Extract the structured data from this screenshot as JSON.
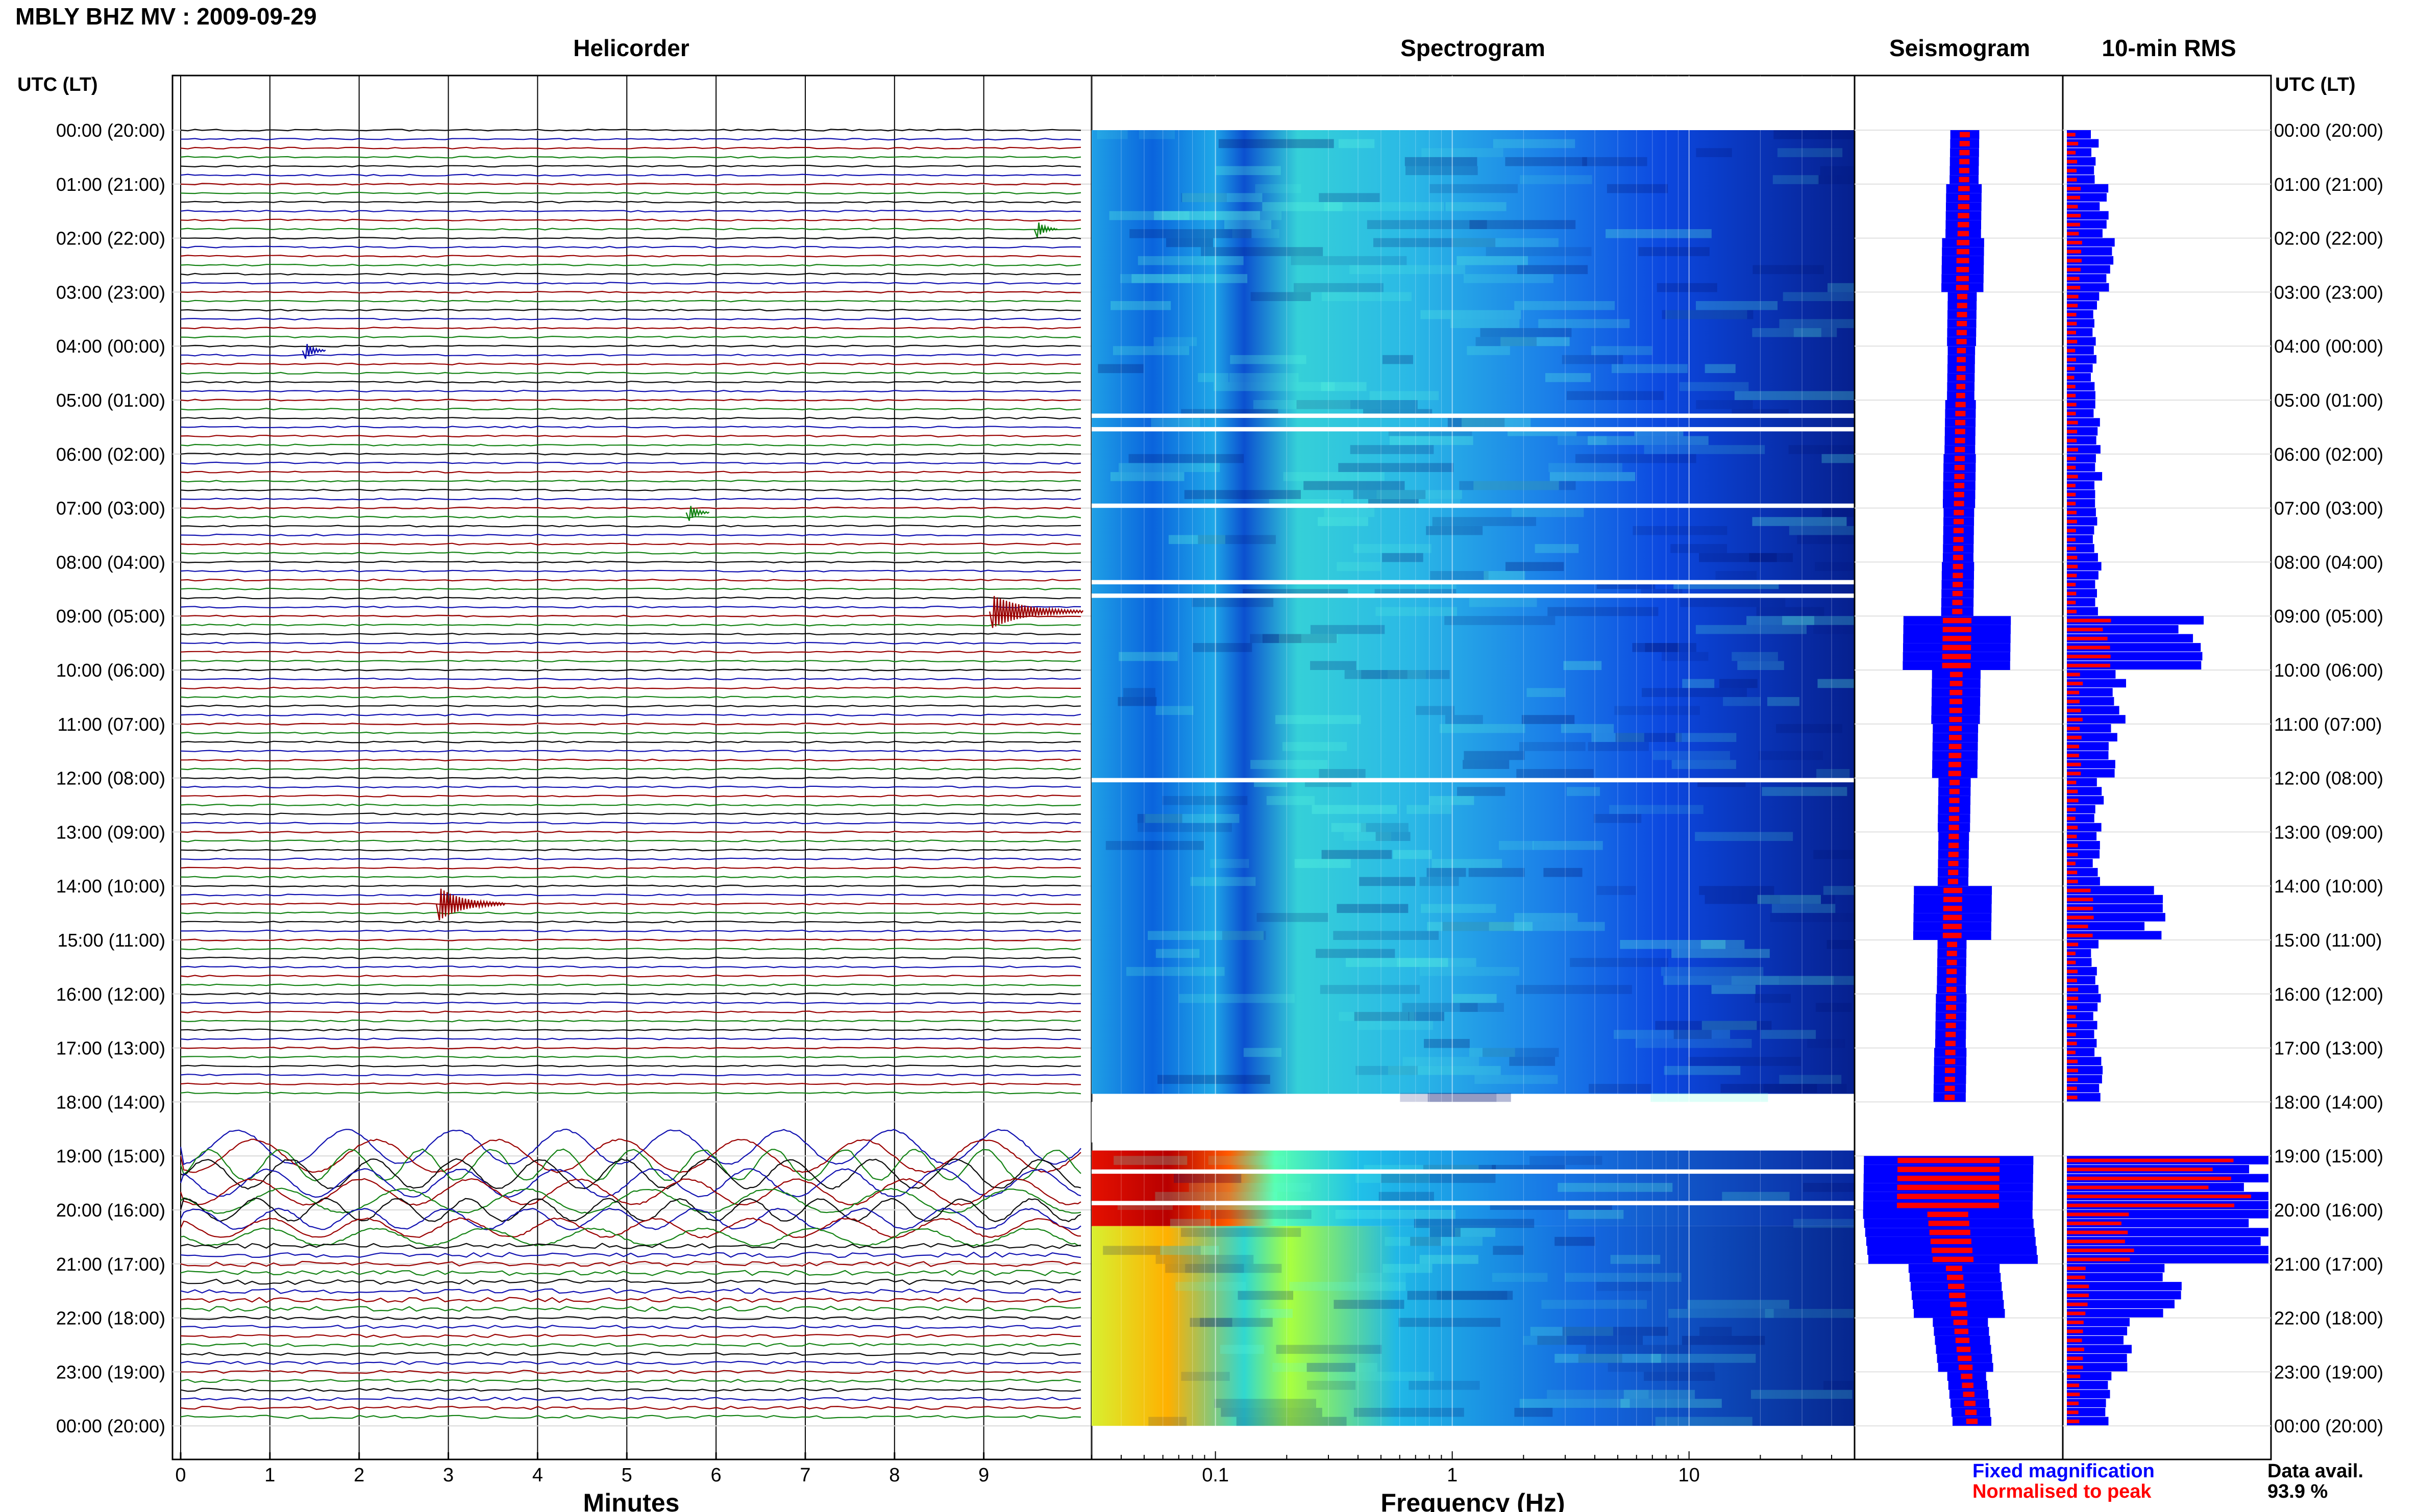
{
  "station_title": "MBLY BHZ MV : 2009-09-29",
  "panels": {
    "helicorder": "Helicorder",
    "spectrogram": "Spectrogram",
    "seismogram": "Seismogram",
    "rms": "10-min RMS"
  },
  "time_axis_label": "UTC (LT)",
  "time_labels": [
    "00:00 (20:00)",
    "01:00 (21:00)",
    "02:00 (22:00)",
    "03:00 (23:00)",
    "04:00 (00:00)",
    "05:00 (01:00)",
    "06:00 (02:00)",
    "07:00 (03:00)",
    "08:00 (04:00)",
    "09:00 (05:00)",
    "10:00 (06:00)",
    "11:00 (07:00)",
    "12:00 (08:00)",
    "13:00 (09:00)",
    "14:00 (10:00)",
    "15:00 (11:00)",
    "16:00 (12:00)",
    "17:00 (13:00)",
    "18:00 (14:00)",
    "19:00 (15:00)",
    "20:00 (16:00)",
    "21:00 (17:00)",
    "22:00 (18:00)",
    "23:00 (19:00)",
    "00:00 (20:00)"
  ],
  "helicorder_axis": {
    "label": "Minutes",
    "ticks": [
      "0",
      "1",
      "2",
      "3",
      "4",
      "5",
      "6",
      "7",
      "8",
      "9"
    ],
    "trace_colors": [
      "#0a0a0a",
      "#1010b0",
      "#9a0000",
      "#138213"
    ]
  },
  "spectrogram_axis": {
    "label": "Frequency (Hz)",
    "ticks": [
      {
        "value": 0.1,
        "label": "0.1"
      },
      {
        "value": 1,
        "label": "1"
      },
      {
        "value": 10,
        "label": "10"
      }
    ],
    "xlim_hz": [
      0.03,
      50
    ],
    "scale": "log",
    "colormap": [
      "#00008b",
      "#0040ff",
      "#00c0ff",
      "#40ffb0",
      "#d0ff30",
      "#ffd000",
      "#ff4000",
      "#b00000"
    ]
  },
  "legend": {
    "fixed": {
      "text": "Fixed magnification",
      "color": "#0000ff"
    },
    "normalised": {
      "text": "Normalised to peak",
      "color": "#ff0000"
    }
  },
  "data_availability": {
    "label": "Data avail.",
    "value": "93.9 %"
  },
  "chart_data": {
    "type": "heatmap",
    "title": "MBLY BHZ MV : 2009-09-29",
    "rms_10min_hourly": [
      {
        "hour": 0,
        "fixed": 0.14,
        "normalised": 0.05
      },
      {
        "hour": 1,
        "fixed": 0.18,
        "normalised": 0.06
      },
      {
        "hour": 2,
        "fixed": 0.22,
        "normalised": 0.07
      },
      {
        "hour": 3,
        "fixed": 0.14,
        "normalised": 0.05
      },
      {
        "hour": 4,
        "fixed": 0.13,
        "normalised": 0.04
      },
      {
        "hour": 5,
        "fixed": 0.15,
        "normalised": 0.05
      },
      {
        "hour": 6,
        "fixed": 0.16,
        "normalised": 0.05
      },
      {
        "hour": 7,
        "fixed": 0.15,
        "normalised": 0.05
      },
      {
        "hour": 8,
        "fixed": 0.16,
        "normalised": 0.05
      },
      {
        "hour": 9,
        "fixed": 0.62,
        "normalised": 0.2
      },
      {
        "hour": 10,
        "fixed": 0.26,
        "normalised": 0.07
      },
      {
        "hour": 11,
        "fixed": 0.24,
        "normalised": 0.07
      },
      {
        "hour": 12,
        "fixed": 0.16,
        "normalised": 0.05
      },
      {
        "hour": 13,
        "fixed": 0.15,
        "normalised": 0.05
      },
      {
        "hour": 14,
        "fixed": 0.44,
        "normalised": 0.12
      },
      {
        "hour": 15,
        "fixed": 0.14,
        "normalised": 0.05
      },
      {
        "hour": 16,
        "fixed": 0.15,
        "normalised": 0.05
      },
      {
        "hour": 17,
        "fixed": 0.16,
        "normalised": 0.05
      },
      {
        "hour": 19,
        "fixed": 1.0,
        "normalised": 0.8
      },
      {
        "hour": 20,
        "fixed": 1.0,
        "normalised": 0.3
      },
      {
        "hour": 21,
        "fixed": 0.52,
        "normalised": 0.1
      },
      {
        "hour": 22,
        "fixed": 0.3,
        "normalised": 0.08
      },
      {
        "hour": 23,
        "fixed": 0.2,
        "normalised": 0.06
      }
    ],
    "data_gaps_utc": [
      "05:15",
      "05:30",
      "06:55",
      "08:20",
      "08:35",
      "12:00",
      "18:00-18:45",
      "19:15",
      "19:50"
    ],
    "events_utc": [
      {
        "time": "01:50",
        "minute": 9.6
      },
      {
        "time": "04:05",
        "minute": 1.4
      },
      {
        "time": "07:05",
        "minute": 5.7
      },
      {
        "time": "08:55",
        "minute": 9.1
      },
      {
        "time": "14:20",
        "minute": 2.9
      }
    ]
  }
}
